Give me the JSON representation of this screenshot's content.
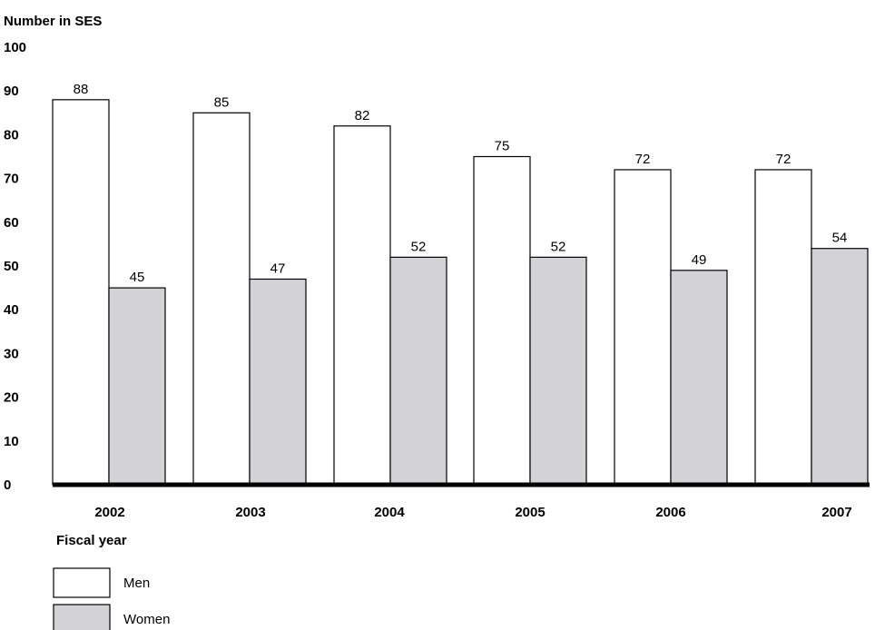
{
  "chart_data": {
    "type": "bar",
    "ylabel": "Number in SES",
    "xlabel": "Fiscal year",
    "categories": [
      "2002",
      "2003",
      "2004",
      "2005",
      "2006",
      "2007"
    ],
    "ylim": [
      0,
      100
    ],
    "yticks": [
      0,
      10,
      20,
      30,
      40,
      50,
      60,
      70,
      80,
      90,
      100
    ],
    "grid": false,
    "legend_position": "bottom-left",
    "series": [
      {
        "name": "Men",
        "values": [
          88,
          85,
          82,
          75,
          72,
          72
        ],
        "color": "#ffffff"
      },
      {
        "name": "Women",
        "values": [
          45,
          47,
          52,
          52,
          49,
          54
        ],
        "color": "#d3d3d5"
      }
    ]
  }
}
